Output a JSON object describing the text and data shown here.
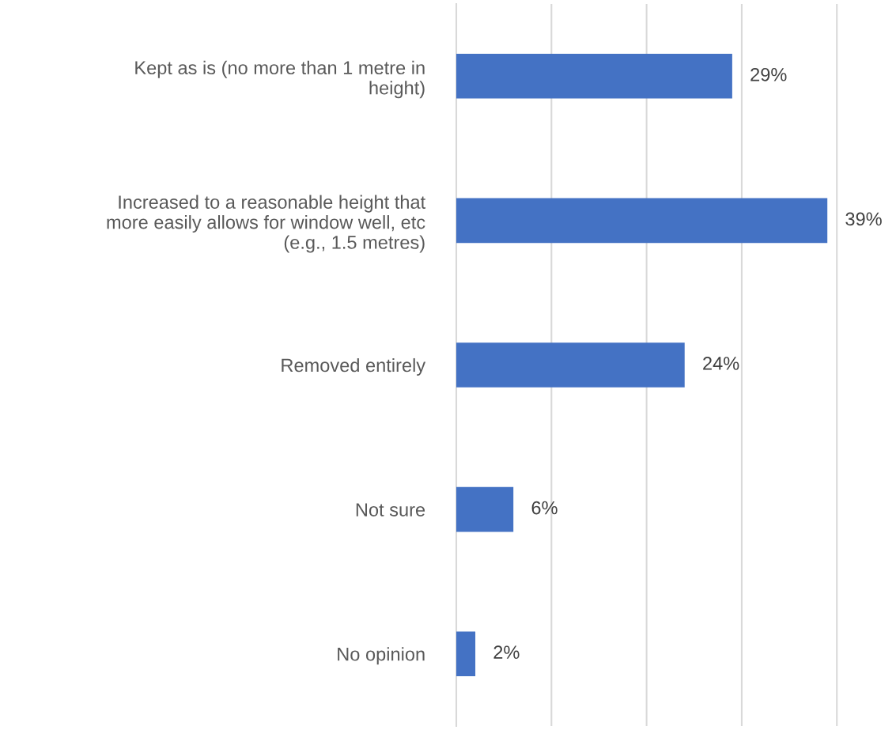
{
  "chart_data": {
    "type": "bar",
    "orientation": "horizontal",
    "categories": [
      "Kept as is (no more than 1 metre in\nheight)",
      "Increased to a reasonable height that\nmore easily allows for window well, etc\n(e.g., 1.5 metres)",
      "Removed entirely",
      "Not sure",
      "No opinion"
    ],
    "values": [
      29,
      39,
      24,
      6,
      2
    ],
    "value_labels": [
      "29%",
      "39%",
      "24%",
      "6%",
      "2%"
    ],
    "color": "#4472c4",
    "xticks": [
      {
        "value": 0,
        "label": null
      },
      {
        "value": 10,
        "label": null
      },
      {
        "value": 20,
        "label": null
      },
      {
        "value": 30,
        "label": null
      },
      {
        "value": 40,
        "label": null
      }
    ],
    "tick_labels": "y",
    "grid": "x",
    "legend": false
  }
}
